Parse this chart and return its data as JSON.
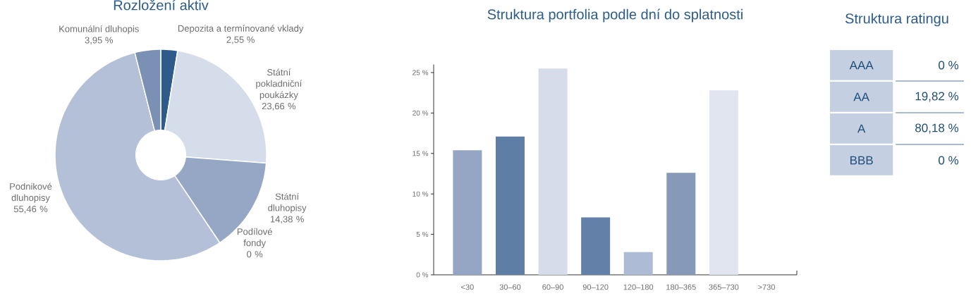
{
  "chart_data": [
    {
      "type": "donut",
      "title": "Rozložení aktiv",
      "categories": [
        "Depozita a termínované vklady",
        "Státní pokladniční poukázky",
        "Státní dluhopisy",
        "Podílové fondy",
        "Podnikové dluhopisy",
        "Komunální dluhopis"
      ],
      "values": [
        2.55,
        23.66,
        14.38,
        0,
        55.46,
        3.95
      ],
      "value_labels": [
        "2,55 %",
        "23,66 %",
        "14,38 %",
        "0 %",
        "55,46 %",
        "3,95 %"
      ],
      "colors": [
        "#2f5b8a",
        "#d5dcea",
        "#95a7c5",
        "#c9d2e4",
        "#b3c0d8",
        "#7a90b5"
      ]
    },
    {
      "type": "bar",
      "title": "Struktura portfolia podle dní do splatnosti",
      "categories": [
        "<30",
        "30–60",
        "60–90",
        "90–120",
        "120–180",
        "180–365",
        "365–730",
        ">730"
      ],
      "values": [
        15.4,
        17.1,
        25.5,
        7.1,
        2.8,
        12.6,
        22.8,
        0
      ],
      "colors": [
        "#94a6c4",
        "#5f7ea6",
        "#d6dcea",
        "#6381a8",
        "#adbbd5",
        "#8799b9",
        "#e1e5ef",
        "#ccd4e4"
      ],
      "ylim": [
        0,
        26
      ],
      "yticks": [
        {
          "value": 0,
          "label": "0 %"
        },
        {
          "value": 5,
          "label": "5 %"
        },
        {
          "value": 10,
          "label": "10 %"
        },
        {
          "value": 15,
          "label": "15 %"
        },
        {
          "value": 20,
          "label": "20 %"
        },
        {
          "value": 25,
          "label": "25 %"
        }
      ]
    },
    {
      "type": "other",
      "title": "Struktura ratingu",
      "categories": [
        "AAA",
        "AA",
        "A",
        "BBB"
      ],
      "values": [
        0,
        19.82,
        80.18,
        0
      ],
      "value_labels": [
        "0 %",
        "19,82 %",
        "80,18 %",
        "0 %"
      ],
      "color": "#c5cfe2"
    }
  ]
}
